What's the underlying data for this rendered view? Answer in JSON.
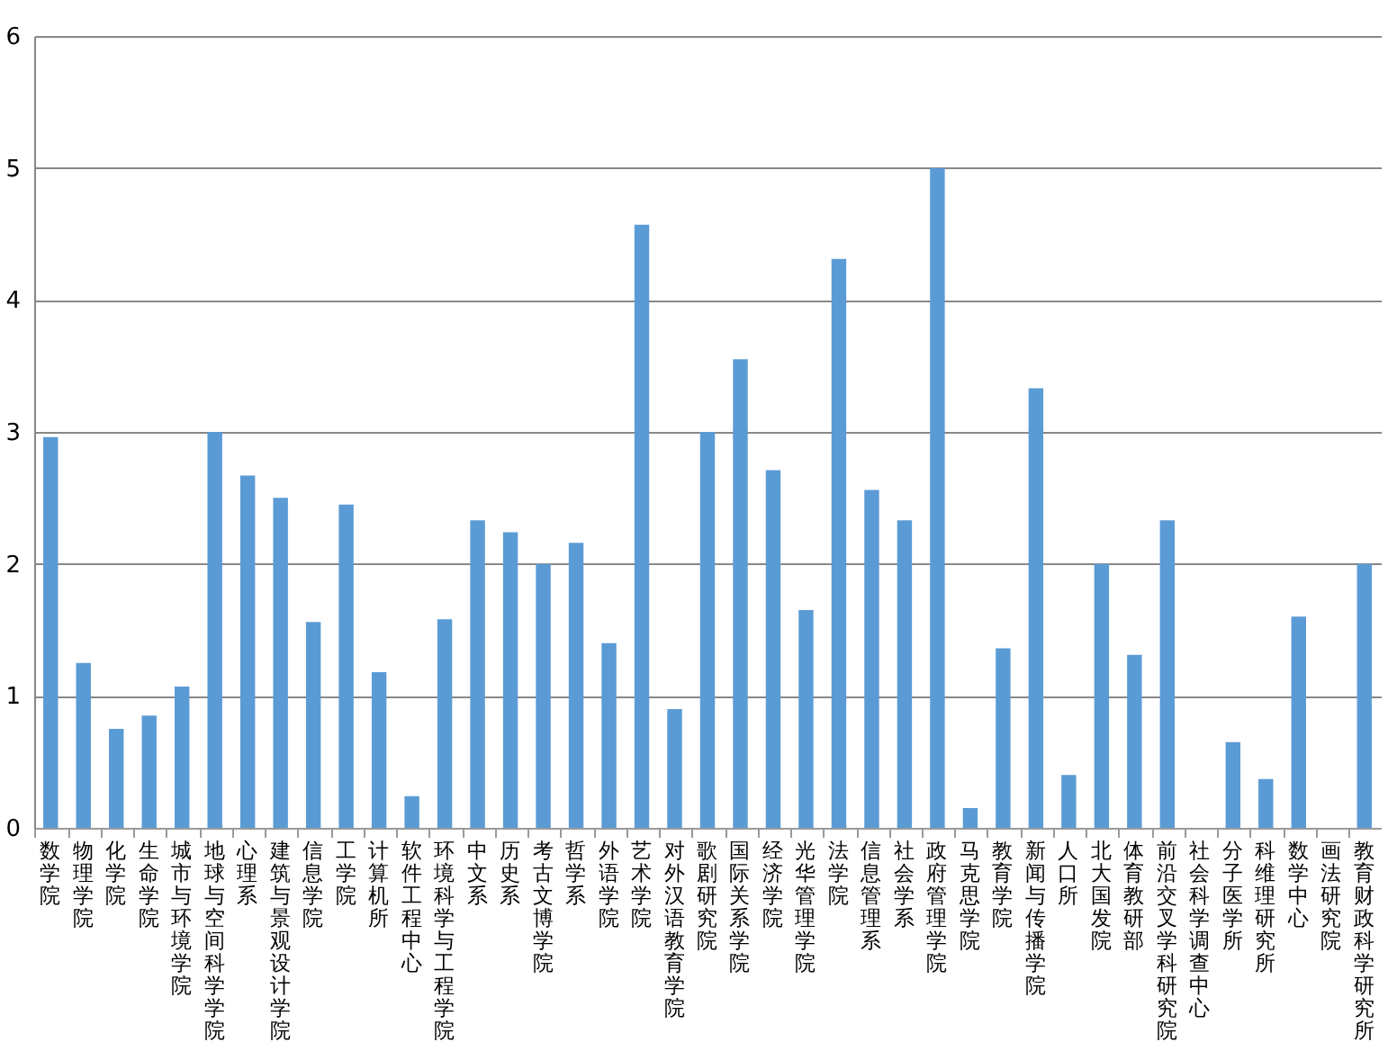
{
  "chart_data": {
    "type": "bar",
    "categories": [
      "数学院",
      "物理学院",
      "化学院",
      "生命学院",
      "城市与环境学院",
      "地球与空间科学学院",
      "心理系",
      "建筑与景观设计学院",
      "信息学院",
      "工学院",
      "计算机所",
      "软件工程中心",
      "环境科学与工程学院",
      "中文系",
      "历史系",
      "考古文博学院",
      "哲学系",
      "外语学院",
      "艺术学院",
      "对外汉语教育学院",
      "歌剧研究院",
      "国际关系学院",
      "经济学院",
      "光华管理学院",
      "法学院",
      "信息管理系",
      "社会学系",
      "政府管理学院",
      "马克思学院",
      "教育学院",
      "新闻与传播学院",
      "人口所",
      "北大国发院",
      "体育教研部",
      "前沿交叉学科研究院",
      "社会科学调查中心",
      "分子医学所",
      "科维理研究所",
      "数学中心",
      "画法研究院",
      "教育财政科学研究所"
    ],
    "values": [
      2.96,
      1.25,
      0.75,
      0.85,
      1.07,
      3.0,
      2.67,
      2.5,
      1.56,
      2.45,
      1.18,
      0.24,
      1.58,
      2.33,
      2.24,
      2.0,
      2.16,
      1.4,
      4.57,
      0.9,
      3.0,
      3.55,
      2.71,
      1.65,
      4.31,
      2.56,
      2.33,
      5.0,
      0.15,
      1.36,
      3.33,
      0.4,
      2.0,
      1.31,
      2.33,
      0,
      0.65,
      0.37,
      1.6,
      0,
      2.0
    ],
    "color": "#5b9bd5",
    "ylim": [
      0,
      6
    ],
    "yticks": [
      0,
      1,
      2,
      3,
      4,
      5,
      6
    ],
    "grid": "y"
  }
}
